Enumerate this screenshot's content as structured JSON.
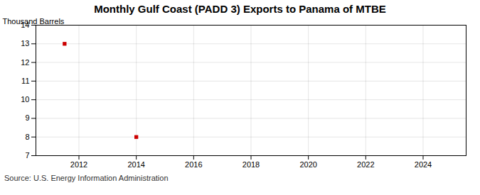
{
  "chart_data": {
    "type": "scatter",
    "title": "Monthly Gulf Coast (PADD 3) Exports to Panama of MTBE",
    "ylabel": "Thousand Barrels",
    "source": "Source: U.S. Energy Information Administration",
    "x": [
      2011.5,
      2014.0
    ],
    "values": [
      13,
      8
    ],
    "color": "#cc0000",
    "marker": "square",
    "xlim": [
      2010.5,
      2025.5
    ],
    "ylim": [
      7,
      14
    ],
    "xticks": [
      2012,
      2014,
      2016,
      2018,
      2020,
      2022,
      2024
    ],
    "yticks": [
      7,
      8,
      9,
      10,
      11,
      12,
      13,
      14
    ],
    "grid": true
  }
}
